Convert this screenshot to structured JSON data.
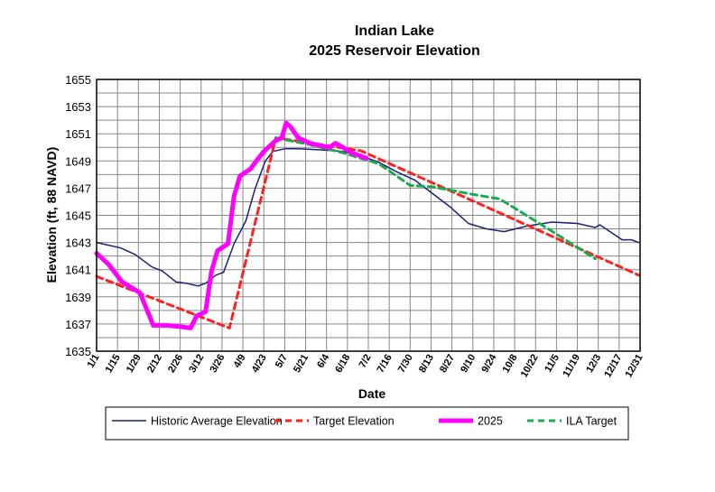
{
  "chart_data": {
    "type": "line",
    "title": [
      "Indian Lake",
      "2025 Reservoir Elevation"
    ],
    "xlabel": "Date",
    "ylabel": "Elevation (ft, 88 NAVD)",
    "ylim": [
      1635,
      1655
    ],
    "xlim_day_of_year": [
      0,
      364
    ],
    "y_ticks": [
      1635,
      1637,
      1639,
      1641,
      1643,
      1645,
      1647,
      1649,
      1651,
      1653,
      1655
    ],
    "x_tick_labels": [
      "1/1",
      "1/15",
      "1/29",
      "2/12",
      "2/26",
      "3/12",
      "3/26",
      "4/9",
      "4/23",
      "5/7",
      "5/21",
      "6/4",
      "6/18",
      "7/2",
      "7/16",
      "7/30",
      "8/13",
      "8/27",
      "9/10",
      "9/24",
      "10/8",
      "10/22",
      "11/5",
      "11/19",
      "12/3",
      "12/17",
      "12/31"
    ],
    "grid": true,
    "legend_placement": "bottom",
    "series": [
      {
        "name": "Historic Average Elevation",
        "color": "#1f1f7a",
        "style": "solid-thin",
        "x": [
          0,
          8,
          16,
          26,
          37,
          44,
          53,
          60,
          68,
          73,
          80,
          85,
          92,
          100,
          106,
          113,
          118,
          126,
          135,
          153,
          165,
          177,
          189,
          201,
          213,
          225,
          237,
          249,
          261,
          273,
          288,
          305,
          322,
          334,
          337,
          352,
          358,
          363
        ],
        "y": [
          1643.0,
          1642.8,
          1642.6,
          1642.1,
          1641.2,
          1640.9,
          1640.1,
          1640.0,
          1639.8,
          1640.0,
          1640.6,
          1640.8,
          1642.9,
          1644.6,
          1646.9,
          1649.0,
          1649.7,
          1649.9,
          1649.9,
          1649.8,
          1649.7,
          1649.4,
          1648.9,
          1648.2,
          1647.6,
          1646.6,
          1645.6,
          1644.4,
          1644.0,
          1643.8,
          1644.2,
          1644.5,
          1644.4,
          1644.1,
          1644.3,
          1643.2,
          1643.2,
          1643.0
        ]
      },
      {
        "name": "Target Elevation",
        "color": "#ff2020",
        "style": "dashed",
        "x": [
          0,
          89,
          120,
          150,
          177,
          363
        ],
        "y": [
          1640.5,
          1636.7,
          1650.7,
          1650.2,
          1649.75,
          1640.6
        ]
      },
      {
        "name": "2025",
        "color": "#ff00ff",
        "style": "solid-thick",
        "x": [
          0,
          8,
          17,
          26,
          29,
          38,
          47,
          56,
          63,
          67,
          73,
          77,
          81,
          88,
          92,
          96,
          103,
          107,
          112,
          120,
          124,
          127,
          130,
          135,
          143,
          156,
          160,
          165,
          171,
          181
        ],
        "y": [
          1642.2,
          1641.4,
          1640.1,
          1639.5,
          1639.3,
          1636.9,
          1636.9,
          1636.8,
          1636.7,
          1637.6,
          1637.9,
          1640.9,
          1642.4,
          1642.9,
          1646.4,
          1647.9,
          1648.4,
          1649.0,
          1649.7,
          1650.5,
          1650.7,
          1651.8,
          1651.5,
          1650.7,
          1650.3,
          1650.0,
          1650.3,
          1650.0,
          1649.6,
          1649.2
        ]
      },
      {
        "name": "ILA Target",
        "color": "#1aaa50",
        "style": "dashed",
        "x": [
          120,
          143,
          165,
          189,
          210,
          225,
          249,
          270,
          279,
          304,
          334
        ],
        "y": [
          1650.7,
          1650.2,
          1649.6,
          1648.8,
          1647.2,
          1647.1,
          1646.6,
          1646.2,
          1645.6,
          1643.9,
          1641.8
        ]
      }
    ]
  }
}
